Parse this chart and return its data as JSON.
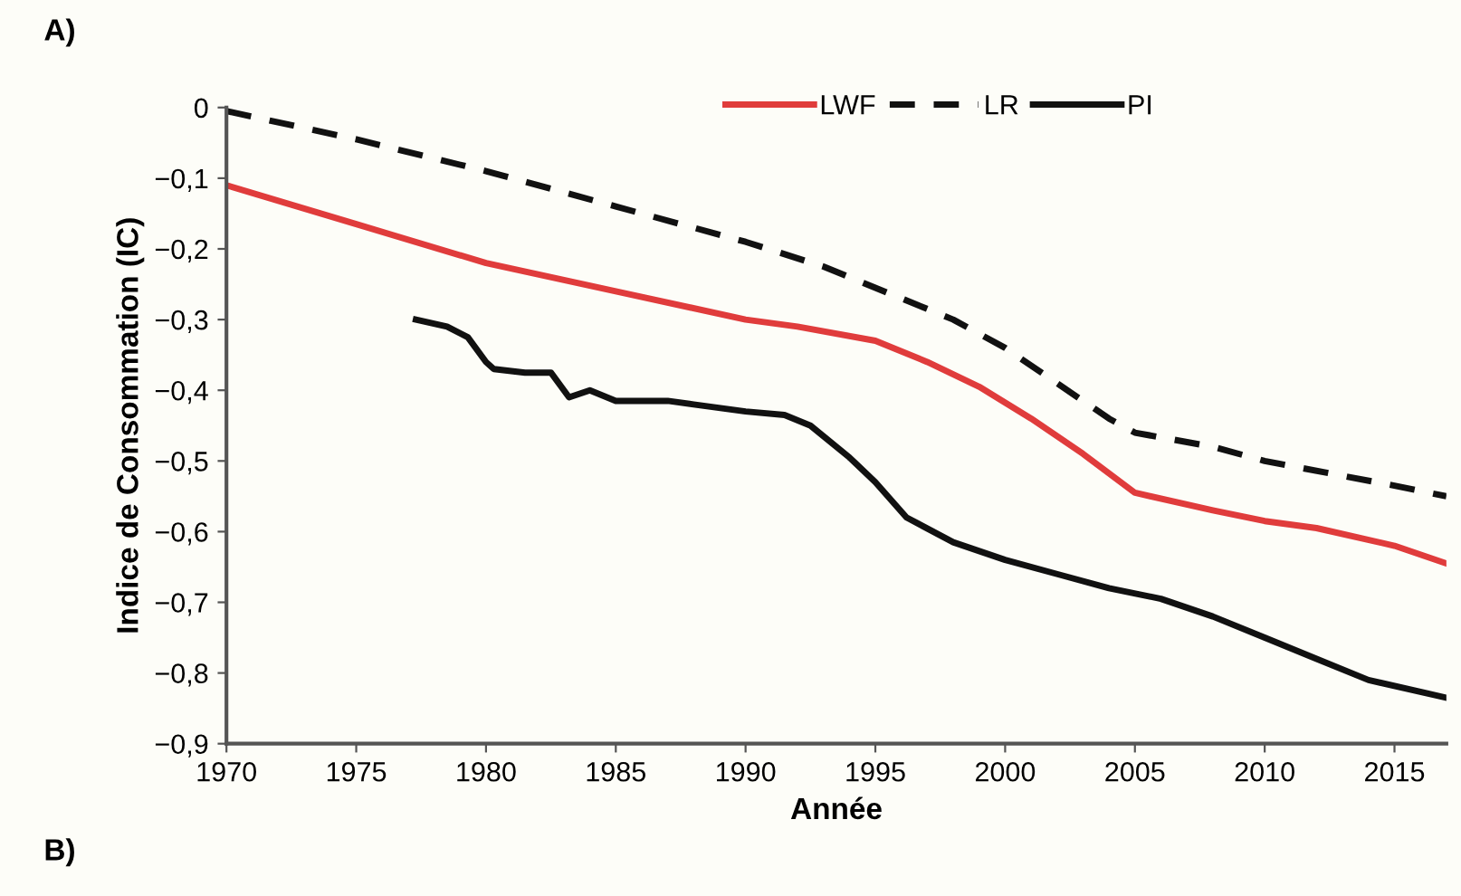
{
  "chart_data": {
    "type": "line",
    "xlabel": "Année",
    "ylabel": "Indice de Consommation (IC)",
    "annotations": [
      "A)",
      "B)"
    ],
    "xlim": [
      1970,
      2017
    ],
    "xticks": [
      1970,
      1975,
      1980,
      1985,
      1990,
      1995,
      2000,
      2005,
      2010,
      2015
    ],
    "ylim": [
      -0.9,
      0
    ],
    "yticks": [
      {
        "value": 0,
        "label": "0"
      },
      {
        "value": -0.1,
        "label": "−0,1"
      },
      {
        "value": -0.2,
        "label": "−0,2"
      },
      {
        "value": -0.3,
        "label": "−0,3"
      },
      {
        "value": -0.4,
        "label": "−0,4"
      },
      {
        "value": -0.5,
        "label": "−0,5"
      },
      {
        "value": -0.6,
        "label": "−0,6"
      },
      {
        "value": -0.7,
        "label": "−0,7"
      },
      {
        "value": -0.8,
        "label": "−0,8"
      },
      {
        "value": -0.9,
        "label": "−0,9"
      }
    ],
    "grid": false,
    "legend": "top right",
    "marker": "none",
    "series": [
      {
        "name": "LWF",
        "color": "#e03c3c",
        "line_style": "solid",
        "x": [
          1970,
          1975,
          1980,
          1985,
          1990,
          1992,
          1995,
          1997,
          1999,
          2001,
          2003,
          2005,
          2008,
          2010,
          2012,
          2015,
          2017
        ],
        "values": [
          -0.11,
          -0.165,
          -0.22,
          -0.26,
          -0.3,
          -0.31,
          -0.33,
          -0.36,
          -0.395,
          -0.44,
          -0.49,
          -0.545,
          -0.57,
          -0.585,
          -0.595,
          -0.62,
          -0.645
        ]
      },
      {
        "name": "LR",
        "color": "#111111",
        "line_style": "dashed",
        "x": [
          1970,
          1975,
          1980,
          1985,
          1990,
          1993,
          1995,
          1998,
          2000,
          2002,
          2004,
          2005,
          2008,
          2010,
          2015,
          2017
        ],
        "values": [
          -0.005,
          -0.045,
          -0.09,
          -0.14,
          -0.19,
          -0.225,
          -0.255,
          -0.3,
          -0.34,
          -0.39,
          -0.44,
          -0.46,
          -0.48,
          -0.5,
          -0.535,
          -0.55
        ]
      },
      {
        "name": "PI",
        "color": "#111111",
        "line_style": "solid",
        "x": [
          1977.3,
          1978.5,
          1979.3,
          1980,
          1980.3,
          1981.5,
          1982.5,
          1983.2,
          1984,
          1985,
          1987,
          1988,
          1990,
          1991.5,
          1992.5,
          1994,
          1995,
          1996.2,
          1998,
          2000,
          2002,
          2004,
          2006,
          2008,
          2010,
          2012,
          2014,
          2017
        ],
        "values": [
          -0.3,
          -0.31,
          -0.325,
          -0.36,
          -0.37,
          -0.375,
          -0.375,
          -0.41,
          -0.4,
          -0.415,
          -0.415,
          -0.42,
          -0.43,
          -0.435,
          -0.45,
          -0.495,
          -0.53,
          -0.58,
          -0.615,
          -0.64,
          -0.66,
          -0.68,
          -0.695,
          -0.72,
          -0.75,
          -0.78,
          -0.81,
          -0.835
        ]
      }
    ]
  }
}
